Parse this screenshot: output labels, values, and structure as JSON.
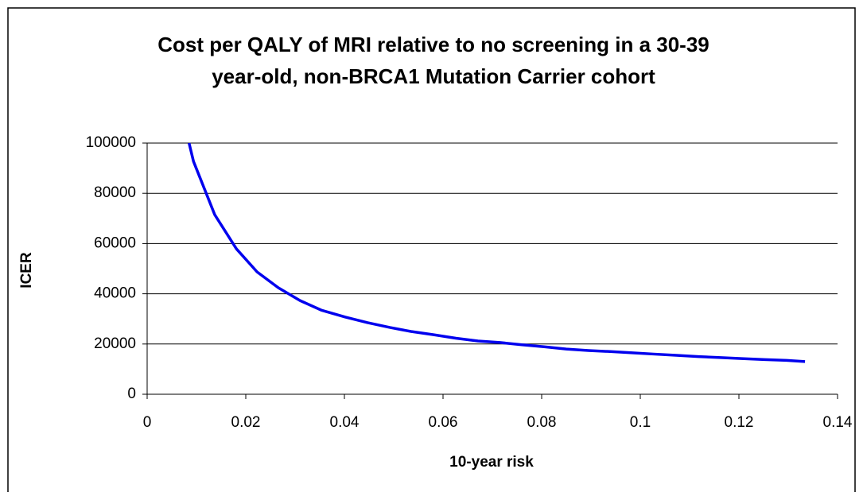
{
  "chart_data": {
    "type": "line",
    "title": [
      "Cost per QALY of MRI relative to no screening in a 30-39",
      "year-old, non-BRCA1 Mutation Carrier cohort"
    ],
    "x_label": "10-year risk",
    "y_label": "ICER",
    "x": [
      0.0085,
      0.0094,
      0.0137,
      0.0181,
      0.0223,
      0.0266,
      0.031,
      0.0353,
      0.0402,
      0.0447,
      0.0492,
      0.0535,
      0.0581,
      0.0626,
      0.0671,
      0.0715,
      0.076,
      0.0805,
      0.085,
      0.0895,
      0.0939,
      0.0984,
      0.1027,
      0.1073,
      0.1118,
      0.1163,
      0.1206,
      0.1252,
      0.1297,
      0.1334
    ],
    "series": [
      {
        "color": "#0000ee",
        "values": [
          100000,
          92700,
          71500,
          57900,
          48700,
          42400,
          37300,
          33500,
          30700,
          28500,
          26600,
          25000,
          23700,
          22300,
          21200,
          20600,
          19700,
          18900,
          18000,
          17400,
          17000,
          16500,
          16000,
          15500,
          15000,
          14600,
          14200,
          13800,
          13500,
          13000
        ]
      }
    ],
    "xlim": [
      0,
      0.14
    ],
    "xticks": [
      0,
      0.02,
      0.04,
      0.06,
      0.08,
      0.1,
      0.12,
      0.14
    ],
    "ylim": [
      0,
      100000
    ],
    "yticks": [
      0,
      20000,
      40000,
      60000,
      80000,
      100000
    ],
    "grid": true
  }
}
